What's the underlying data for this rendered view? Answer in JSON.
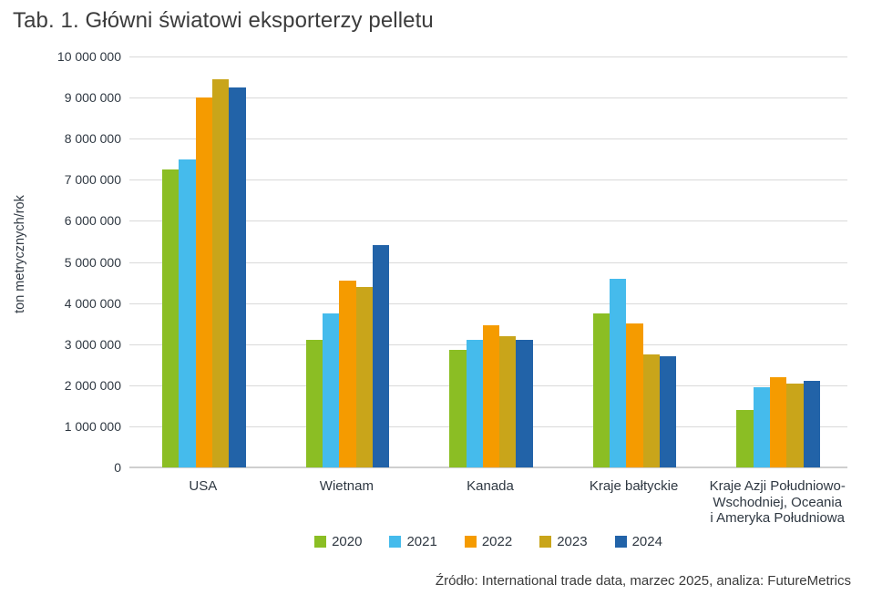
{
  "chart_data": {
    "type": "bar",
    "title": "Tab. 1. Główni światowi eksporterzy pelletu",
    "ylabel": "ton metrycznych/rok",
    "ylim": [
      0,
      10000000
    ],
    "ytick_step": 1000000,
    "ytick_labels": [
      "0",
      "1 000 000",
      "2 000 000",
      "3 000 000",
      "4 000 000",
      "5 000 000",
      "6 000 000",
      "7 000 000",
      "8 000 000",
      "9 000 000",
      "10 000 000"
    ],
    "grid": true,
    "legend_position": "bottom-center",
    "categories": [
      "USA",
      "Wietnam",
      "Kanada",
      "Kraje bałtyckie",
      "Kraje Azji Południowo-\nWschodniej, Oceania\ni Ameryka Południowa"
    ],
    "series": [
      {
        "name": "2020",
        "color": "#8bbe24",
        "values": [
          7250000,
          3100000,
          2850000,
          3750000,
          1400000
        ]
      },
      {
        "name": "2021",
        "color": "#45bbec",
        "values": [
          7500000,
          3750000,
          3100000,
          4600000,
          1950000
        ]
      },
      {
        "name": "2022",
        "color": "#f59b00",
        "values": [
          9000000,
          4550000,
          3450000,
          3500000,
          2200000
        ]
      },
      {
        "name": "2023",
        "color": "#c9a51a",
        "values": [
          9450000,
          4400000,
          3200000,
          2750000,
          2050000
        ]
      },
      {
        "name": "2024",
        "color": "#2263a8",
        "values": [
          9250000,
          5400000,
          3100000,
          2700000,
          2100000
        ]
      }
    ]
  },
  "source_note": "Źródło: International trade data, marzec 2025, analiza: FutureMetrics",
  "colors": {
    "grid": "#d9d9d9",
    "axis_text": "#2f3842",
    "title_text": "#3c3c3c"
  }
}
